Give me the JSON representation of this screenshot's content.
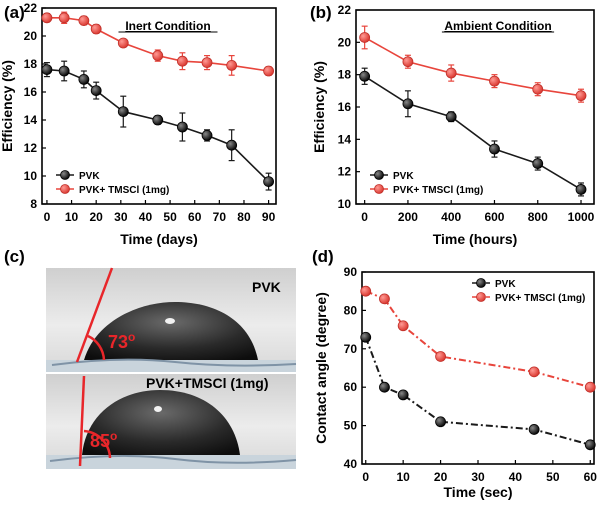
{
  "panels": {
    "a": {
      "label": "(a)"
    },
    "b": {
      "label": "(b)"
    },
    "c": {
      "label": "(c)",
      "top_label": "PVK",
      "bottom_label": "PVK+TMSCl (1mg)",
      "top_angle": "73",
      "bottom_angle": "85",
      "degree_symbol": "o"
    },
    "d": {
      "label": "(d)"
    }
  },
  "colors": {
    "pvk": "#1a1a1a",
    "tmscl": "#e8453c",
    "line_red": "#e8262a"
  },
  "chart_data": [
    {
      "id": "a",
      "type": "line",
      "title": "Inert Condition",
      "xlabel": "Time (days)",
      "ylabel": "Efficiency (%)",
      "xlim": [
        -2,
        93
      ],
      "ylim": [
        8,
        22
      ],
      "xticks": [
        0,
        10,
        20,
        30,
        40,
        50,
        60,
        70,
        80,
        90
      ],
      "yticks": [
        8,
        10,
        12,
        14,
        16,
        18,
        20,
        22
      ],
      "legend_position": "bottom-left",
      "series": [
        {
          "name": "PVK",
          "color": "#1a1a1a",
          "x": [
            0,
            7,
            15,
            20,
            31,
            45,
            55,
            65,
            75,
            90
          ],
          "y": [
            17.6,
            17.5,
            16.9,
            16.1,
            14.6,
            14.0,
            13.5,
            12.9,
            12.2,
            9.6
          ],
          "err": [
            0.5,
            0.7,
            0.6,
            0.6,
            1.1,
            0.3,
            1.0,
            0.4,
            1.1,
            0.6
          ]
        },
        {
          "name": "PVK+ TMSCl (1mg)",
          "color": "#e8453c",
          "x": [
            0,
            7,
            15,
            20,
            31,
            45,
            55,
            65,
            75,
            90
          ],
          "y": [
            21.3,
            21.3,
            21.1,
            20.5,
            19.5,
            18.6,
            18.2,
            18.1,
            17.9,
            17.5
          ],
          "err": [
            0.3,
            0.4,
            0.3,
            0.3,
            0.2,
            0.4,
            0.6,
            0.5,
            0.7,
            0.3
          ]
        }
      ]
    },
    {
      "id": "b",
      "type": "line",
      "title": "Ambient Condition",
      "xlabel": "Time (hours)",
      "ylabel": "Efficiency (%)",
      "xlim": [
        -40,
        1060
      ],
      "ylim": [
        10,
        22
      ],
      "xticks": [
        0,
        200,
        400,
        600,
        800,
        1000
      ],
      "yticks": [
        10,
        12,
        14,
        16,
        18,
        20,
        22
      ],
      "legend_position": "bottom-left",
      "series": [
        {
          "name": "PVK",
          "color": "#1a1a1a",
          "x": [
            0,
            200,
            400,
            600,
            800,
            1000
          ],
          "y": [
            17.9,
            16.2,
            15.4,
            13.4,
            12.5,
            10.9
          ],
          "err": [
            0.5,
            0.8,
            0.3,
            0.5,
            0.4,
            0.4
          ]
        },
        {
          "name": "PVK+ TMSCl (1mg)",
          "color": "#e8453c",
          "x": [
            0,
            200,
            400,
            600,
            800,
            1000
          ],
          "y": [
            20.3,
            18.8,
            18.1,
            17.6,
            17.1,
            16.7
          ],
          "err": [
            0.7,
            0.4,
            0.5,
            0.4,
            0.4,
            0.4
          ]
        }
      ]
    },
    {
      "id": "d",
      "type": "line",
      "title": "",
      "xlabel": "Time (sec)",
      "ylabel": "Contact angle (degree)",
      "xlim": [
        -1,
        61
      ],
      "ylim": [
        40,
        90
      ],
      "xticks": [
        0,
        10,
        20,
        30,
        40,
        50,
        60
      ],
      "yticks": [
        40,
        50,
        60,
        70,
        80,
        90
      ],
      "legend_position": "top-right",
      "series": [
        {
          "name": "PVK",
          "color": "#1a1a1a",
          "x": [
            0,
            5,
            10,
            20,
            45,
            60
          ],
          "y": [
            73,
            60,
            58,
            51,
            49,
            45
          ]
        },
        {
          "name": "PVK+ TMSCl (1mg)",
          "color": "#e8453c",
          "x": [
            0,
            5,
            10,
            20,
            45,
            60
          ],
          "y": [
            85,
            83,
            76,
            68,
            64,
            60
          ]
        }
      ]
    }
  ]
}
